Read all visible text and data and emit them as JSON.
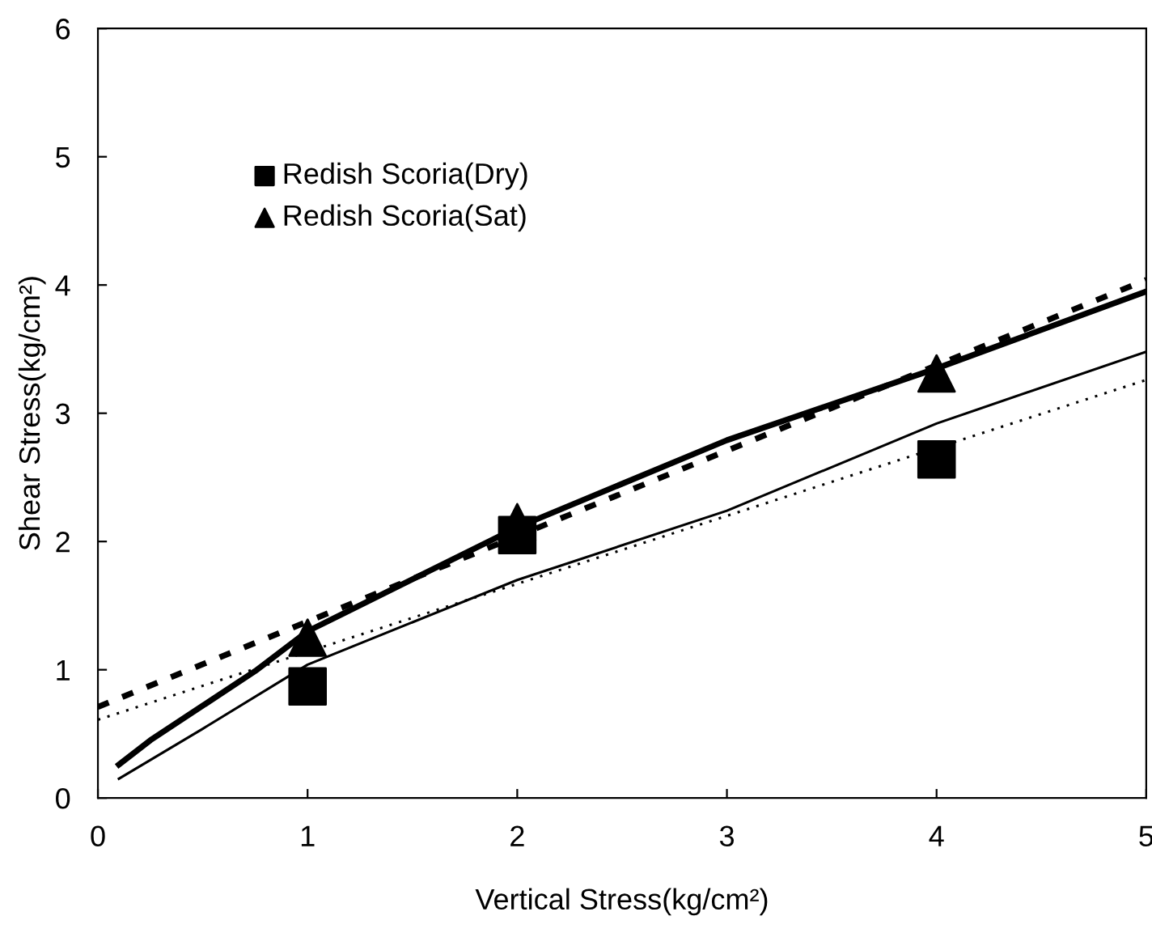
{
  "chart_data": {
    "type": "scatter",
    "xlabel": "Vertical Stress(kg/cm²)",
    "ylabel": "Shear Stress(kg/cm²)",
    "xlim": [
      0,
      5
    ],
    "ylim": [
      0,
      6
    ],
    "xticks": [
      0,
      1,
      2,
      3,
      4,
      5
    ],
    "yticks": [
      0,
      1,
      2,
      3,
      4,
      5,
      6
    ],
    "grid": false,
    "legend": "top left",
    "series": [
      {
        "name": "Redish Scoria(Dry)",
        "marker": "square",
        "color": "#000000",
        "x": [
          1,
          2,
          4
        ],
        "values": [
          0.87,
          2.05,
          2.64
        ]
      },
      {
        "name": "Redish Scoria(Sat)",
        "marker": "triangle",
        "color": "#000000",
        "x": [
          1,
          2,
          4
        ],
        "values": [
          1.25,
          2.15,
          3.31
        ]
      },
      {
        "type": "line",
        "line_style": "solid",
        "marker": "none",
        "color": "#000000",
        "x": [
          0.1,
          0.25,
          0.5,
          0.75,
          1,
          2,
          3,
          4,
          5
        ],
        "values": [
          0.26,
          0.45,
          0.72,
          0.99,
          1.3,
          2.11,
          2.79,
          3.35,
          3.95
        ]
      },
      {
        "type": "line",
        "line_style": "dashed",
        "marker": "none",
        "color": "#000000",
        "x": [
          0,
          5
        ],
        "values": [
          0.71,
          4.04
        ]
      },
      {
        "type": "line",
        "line_style": "solid",
        "marker": "none",
        "color": "#000000",
        "x": [
          0.1,
          0.5,
          1,
          2,
          3,
          4,
          5
        ],
        "values": [
          0.15,
          0.54,
          1.04,
          1.7,
          2.24,
          2.92,
          3.48
        ]
      },
      {
        "type": "line",
        "line_style": "dotted",
        "marker": "none",
        "color": "#000000",
        "x": [
          0,
          5
        ],
        "values": [
          0.61,
          3.26
        ]
      }
    ]
  }
}
